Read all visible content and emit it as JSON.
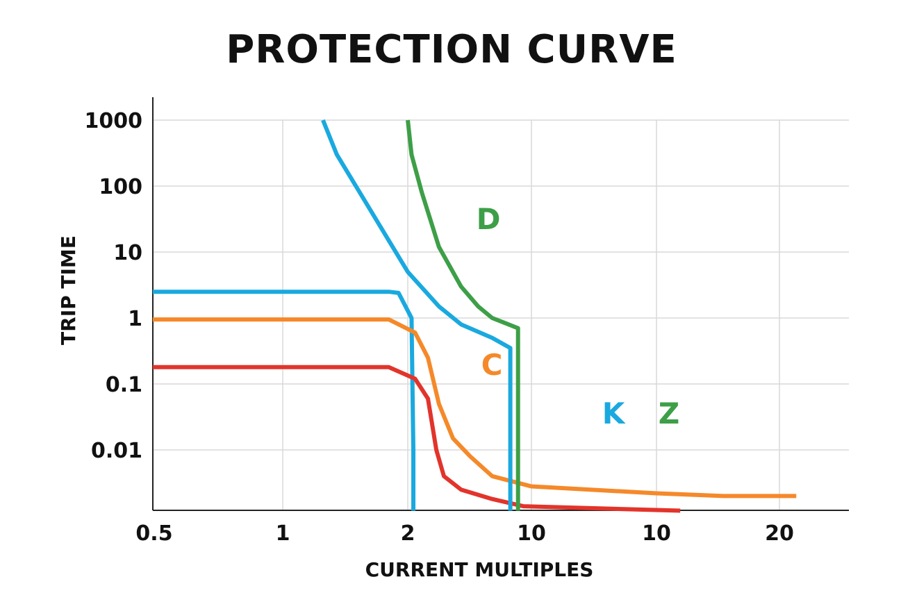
{
  "chart_data": {
    "type": "line",
    "title": "PROTECTION CURVE",
    "xlabel": "CURRENT MULTIPLES",
    "ylabel": "TRIP TIME",
    "x_tick_labels": [
      "0.5",
      "1",
      "2",
      "10",
      "10",
      "20"
    ],
    "y_tick_labels": [
      "1000",
      "100",
      "10",
      "1",
      "0.1",
      "0.01"
    ],
    "y_scale": "log",
    "grid": true,
    "colors": {
      "blue": "#1aa9df",
      "orange": "#f5892a",
      "red": "#e2342b",
      "green": "#3d9f47"
    },
    "series_labels": [
      {
        "text": "D",
        "color": "#3d9f47"
      },
      {
        "text": "C",
        "color": "#f5892a"
      },
      {
        "text": "K",
        "color": "#1aa9df"
      },
      {
        "text": "Z",
        "color": "#3d9f47"
      }
    ],
    "series": [
      {
        "color": "#1aa9df",
        "points": [
          [
            0.5,
            2.5
          ],
          [
            1.8,
            2.5
          ],
          [
            1.9,
            2.4
          ],
          [
            2.1,
            1.0
          ],
          [
            2.15,
            0.01
          ],
          [
            2.15,
            0.0012
          ]
        ]
      },
      {
        "color": "#f5892a",
        "points": [
          [
            0.5,
            0.95
          ],
          [
            1.8,
            0.95
          ],
          [
            2.2,
            0.6
          ],
          [
            2.6,
            0.25
          ],
          [
            3.0,
            0.05
          ],
          [
            3.6,
            0.015
          ],
          [
            4.5,
            0.008
          ],
          [
            6.0,
            0.004
          ],
          [
            10.0,
            0.0028
          ],
          [
            14.0,
            0.0022
          ],
          [
            17.0,
            0.002
          ],
          [
            21.0,
            0.002
          ]
        ]
      },
      {
        "color": "#e2342b",
        "points": [
          [
            0.5,
            0.18
          ],
          [
            1.8,
            0.18
          ],
          [
            2.2,
            0.12
          ],
          [
            2.6,
            0.06
          ],
          [
            2.9,
            0.01
          ],
          [
            3.2,
            0.004
          ],
          [
            4.0,
            0.0025
          ],
          [
            6.0,
            0.0018
          ],
          [
            9.0,
            0.0014
          ],
          [
            15.0,
            0.0012
          ]
        ]
      },
      {
        "color": "#1aa9df",
        "points": [
          [
            1.25,
            1000
          ],
          [
            1.35,
            300
          ],
          [
            1.5,
            100
          ],
          [
            1.8,
            15
          ],
          [
            2.0,
            5
          ],
          [
            3.0,
            1.5
          ],
          [
            4.0,
            0.8
          ],
          [
            6.0,
            0.5
          ],
          [
            7.6,
            0.35
          ],
          [
            7.6,
            0.0012
          ]
        ]
      },
      {
        "color": "#3d9f47",
        "points": [
          [
            2.0,
            1000
          ],
          [
            2.1,
            300
          ],
          [
            2.4,
            80
          ],
          [
            3.0,
            12
          ],
          [
            4.0,
            3
          ],
          [
            5.0,
            1.5
          ],
          [
            6.0,
            1.0
          ],
          [
            7.0,
            0.85
          ],
          [
            8.4,
            0.7
          ],
          [
            8.4,
            0.0012
          ]
        ]
      }
    ]
  }
}
